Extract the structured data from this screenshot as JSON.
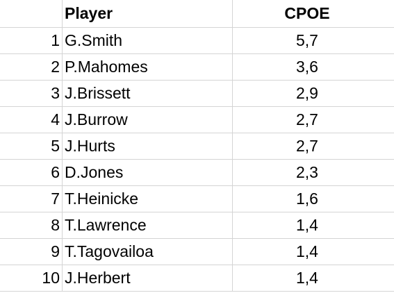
{
  "table": {
    "headers": [
      "",
      "Player",
      "CPOE"
    ],
    "rows": [
      {
        "rank": "1",
        "player": "G.Smith",
        "cpoe": "5,7"
      },
      {
        "rank": "2",
        "player": "P.Mahomes",
        "cpoe": "3,6"
      },
      {
        "rank": "3",
        "player": "J.Brissett",
        "cpoe": "2,9"
      },
      {
        "rank": "4",
        "player": "J.Burrow",
        "cpoe": "2,7"
      },
      {
        "rank": "5",
        "player": "J.Hurts",
        "cpoe": "2,7"
      },
      {
        "rank": "6",
        "player": "D.Jones",
        "cpoe": "2,3"
      },
      {
        "rank": "7",
        "player": "T.Heinicke",
        "cpoe": "1,6"
      },
      {
        "rank": "8",
        "player": "T.Lawrence",
        "cpoe": "1,4"
      },
      {
        "rank": "9",
        "player": "T.Tagovailoa",
        "cpoe": "1,4"
      },
      {
        "rank": "10",
        "player": "J.Herbert",
        "cpoe": "1,4"
      }
    ]
  },
  "colors": {
    "gridline": "#d4d4d4",
    "background": "#ffffff",
    "text": "#000000"
  }
}
